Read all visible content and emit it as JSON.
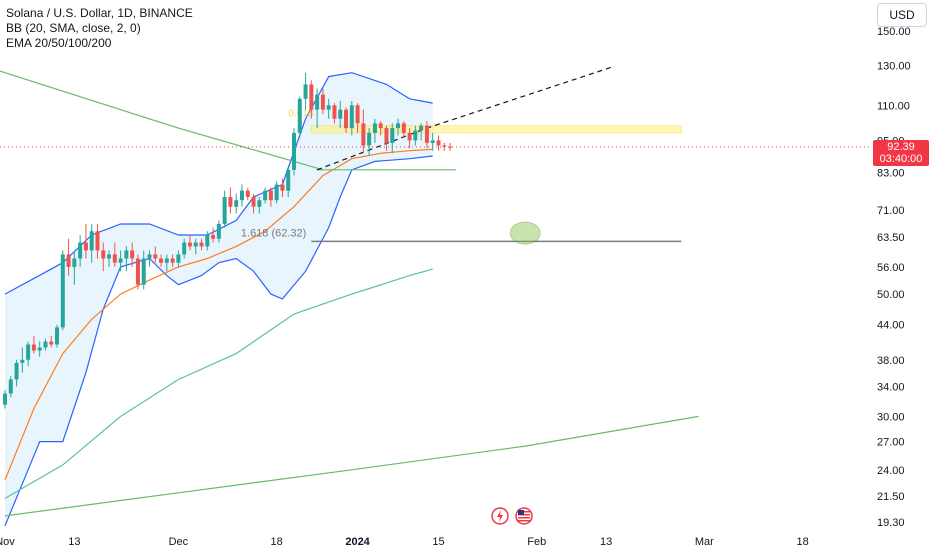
{
  "legend": {
    "symbol": "Solana / U.S. Dollar, 1D, BINANCE",
    "bb": "BB (20, SMA, close, 2, 0)",
    "ema": "EMA 20/50/100/200"
  },
  "currency": "USD",
  "last_price": {
    "price": "92.39",
    "countdown": "03:40:00"
  },
  "colors": {
    "up": "#26a69a",
    "down": "#ef5350",
    "bb_band": "#2962ff",
    "bb_fill": "#e3f2fd",
    "ema20": "#ff7c1f",
    "ema100": "#5bc0a0",
    "ema200": "#66bb6a",
    "fib_level": "#787b86",
    "triangle_line": "#66bb6a",
    "trend_dashed": "#131722",
    "resistance_zone": "#fff176",
    "target_marker": "#8bc34a",
    "price_line": "#f23645"
  },
  "annotations": {
    "fib_label": "1.618 (62.32)",
    "fib_top_label": "0.618"
  },
  "icons": {
    "flash": "lightning-icon",
    "flag": "us-flag-icon"
  },
  "chart_data": {
    "type": "candlestick",
    "title": "Solana / U.S. Dollar, 1D, BINANCE",
    "y_scale": "log",
    "y_ticks": [
      150,
      130,
      110,
      95,
      83,
      71,
      63.5,
      56,
      50,
      44,
      38,
      34,
      30,
      27,
      24,
      21.5,
      19.3
    ],
    "y_tick_labels": [
      "150.00",
      "130.00",
      "110.00",
      "95.00",
      "83.00",
      "71.00",
      "63.50",
      "56.00",
      "50.00",
      "44.00",
      "38.00",
      "34.00",
      "30.00",
      "27.00",
      "24.00",
      "21.50",
      "19.30"
    ],
    "x_tick_labels": [
      "Nov",
      "13",
      "Dec",
      "18",
      "2024",
      "15",
      "Feb",
      "13",
      "Mar",
      "18"
    ],
    "x_tick_dates": [
      "2023-11-01",
      "2023-11-13",
      "2023-12-01",
      "2023-12-18",
      "2024-01-01",
      "2024-01-15",
      "2024-02-01",
      "2024-02-13",
      "2024-03-01",
      "2024-03-18"
    ],
    "start_date": "2023-11-01",
    "candles": [
      [
        31.5,
        31,
        33.5,
        33
      ],
      [
        33,
        32.5,
        35.5,
        35
      ],
      [
        35,
        34,
        38,
        37.5
      ],
      [
        37.5,
        36,
        40,
        38
      ],
      [
        38,
        37,
        41,
        40.5
      ],
      [
        40.5,
        39,
        42,
        39.5
      ],
      [
        39.5,
        38.5,
        41,
        40
      ],
      [
        40,
        39.5,
        41.5,
        41
      ],
      [
        41,
        40,
        42,
        40.5
      ],
      [
        40.5,
        40,
        44,
        43.5
      ],
      [
        43.5,
        43,
        60,
        59
      ],
      [
        59,
        54,
        63,
        56
      ],
      [
        56,
        52,
        60,
        58
      ],
      [
        58,
        56,
        64,
        62
      ],
      [
        62,
        58,
        67,
        60
      ],
      [
        60,
        57,
        67,
        65
      ],
      [
        65,
        58,
        67,
        60
      ],
      [
        60,
        55,
        62,
        58
      ],
      [
        58,
        56,
        60,
        59
      ],
      [
        59,
        56,
        62,
        57
      ],
      [
        57,
        55,
        60,
        58
      ],
      [
        58,
        55,
        61,
        60
      ],
      [
        60,
        56,
        62,
        58
      ],
      [
        58,
        51,
        59,
        52
      ],
      [
        52,
        51,
        60,
        58
      ],
      [
        58,
        56,
        60,
        59
      ],
      [
        59,
        57,
        61,
        58
      ],
      [
        58,
        56,
        59,
        57
      ],
      [
        57,
        55,
        59,
        58
      ],
      [
        58,
        56,
        59,
        57
      ],
      [
        57,
        56,
        60,
        59
      ],
      [
        59,
        58,
        63,
        62
      ],
      [
        62,
        60,
        64,
        61
      ],
      [
        61,
        59,
        63,
        62
      ],
      [
        62,
        60,
        63,
        61
      ],
      [
        61,
        60,
        65,
        64
      ],
      [
        64,
        62,
        66,
        63
      ],
      [
        63,
        62,
        68,
        67
      ],
      [
        67,
        66,
        77,
        75
      ],
      [
        75,
        70,
        78,
        72
      ],
      [
        72,
        70,
        76,
        74
      ],
      [
        74,
        72,
        79,
        77
      ],
      [
        77,
        74,
        78,
        75
      ],
      [
        75,
        70,
        76,
        72
      ],
      [
        72,
        70,
        75,
        74
      ],
      [
        74,
        73,
        78,
        77
      ],
      [
        77,
        72,
        78,
        74
      ],
      [
        74,
        73,
        80,
        79
      ],
      [
        79,
        75,
        81,
        77
      ],
      [
        77,
        75,
        85,
        84
      ],
      [
        84,
        82,
        100,
        98
      ],
      [
        98,
        96,
        114,
        113
      ],
      [
        113,
        108,
        126,
        120
      ],
      [
        120,
        104,
        122,
        108
      ],
      [
        108,
        100,
        118,
        115
      ],
      [
        115,
        106,
        118,
        108
      ],
      [
        108,
        104,
        113,
        110
      ],
      [
        110,
        102,
        111,
        104
      ],
      [
        104,
        100,
        112,
        108
      ],
      [
        108,
        98,
        109,
        100
      ],
      [
        100,
        97,
        112,
        110
      ],
      [
        110,
        98,
        111,
        102
      ],
      [
        102,
        90,
        108,
        93
      ],
      [
        93,
        89,
        100,
        98
      ],
      [
        98,
        94,
        104,
        102
      ],
      [
        102,
        97,
        103,
        100
      ],
      [
        100,
        91,
        101,
        94
      ],
      [
        94,
        90,
        102,
        100
      ],
      [
        100,
        97,
        104,
        102
      ],
      [
        102,
        96,
        103,
        98
      ],
      [
        98,
        92,
        100,
        95
      ],
      [
        95,
        93,
        101,
        99
      ],
      [
        99,
        95,
        102,
        101
      ],
      [
        101,
        92,
        103,
        94
      ],
      [
        94,
        91,
        98,
        95
      ],
      [
        95,
        91,
        97,
        93
      ],
      [
        93,
        91,
        94,
        92.5
      ],
      [
        92.5,
        91,
        94,
        92.4
      ]
    ],
    "bollinger_upper": [
      [
        0,
        50
      ],
      [
        10,
        57
      ],
      [
        15,
        64
      ],
      [
        20,
        67
      ],
      [
        25,
        67
      ],
      [
        30,
        64
      ],
      [
        35,
        64
      ],
      [
        40,
        68
      ],
      [
        43,
        75
      ],
      [
        48,
        79
      ],
      [
        52,
        104
      ],
      [
        56,
        124
      ],
      [
        60,
        126
      ],
      [
        66,
        120
      ],
      [
        70,
        113
      ],
      [
        74,
        111
      ]
    ],
    "bollinger_lower": [
      [
        0,
        19
      ],
      [
        4,
        24
      ],
      [
        6,
        27
      ],
      [
        10,
        27
      ],
      [
        14,
        36
      ],
      [
        17,
        47
      ],
      [
        20,
        56
      ],
      [
        25,
        58
      ],
      [
        28,
        54
      ],
      [
        30,
        52
      ],
      [
        34,
        54
      ],
      [
        37,
        57
      ],
      [
        40,
        58
      ],
      [
        43,
        55
      ],
      [
        46,
        50
      ],
      [
        48,
        49
      ],
      [
        52,
        55
      ],
      [
        56,
        66
      ],
      [
        58,
        75
      ],
      [
        60,
        84
      ],
      [
        64,
        87
      ],
      [
        70,
        88
      ],
      [
        74,
        89
      ]
    ],
    "ema20": [
      [
        0,
        23
      ],
      [
        5,
        31
      ],
      [
        10,
        39
      ],
      [
        15,
        45
      ],
      [
        20,
        50
      ],
      [
        25,
        53
      ],
      [
        30,
        56
      ],
      [
        35,
        58
      ],
      [
        40,
        61
      ],
      [
        45,
        65
      ],
      [
        50,
        72
      ],
      [
        55,
        82
      ],
      [
        60,
        88
      ],
      [
        65,
        90
      ],
      [
        70,
        91
      ],
      [
        74,
        91.5
      ]
    ],
    "ema100": [
      [
        0,
        21.3
      ],
      [
        10,
        24.5
      ],
      [
        20,
        30
      ],
      [
        30,
        35
      ],
      [
        40,
        39
      ],
      [
        50,
        46
      ],
      [
        60,
        50
      ],
      [
        70,
        54
      ],
      [
        74,
        55.5
      ]
    ],
    "ema200": [
      [
        0,
        19.8
      ],
      [
        30,
        21.8
      ],
      [
        60,
        24
      ],
      [
        90,
        26.5
      ],
      [
        120,
        30
      ]
    ],
    "triangle_upper": [
      [
        -1,
        127
      ],
      [
        30,
        100
      ],
      [
        55,
        84
      ]
    ],
    "triangle_support": [
      [
        54,
        84
      ],
      [
        78,
        84
      ]
    ],
    "ascending_dashed": [
      [
        54,
        84
      ],
      [
        73,
        100
      ],
      [
        105,
        129
      ]
    ],
    "resistance_zone": [
      98,
      101
    ],
    "fib_1618": 62.32
  }
}
